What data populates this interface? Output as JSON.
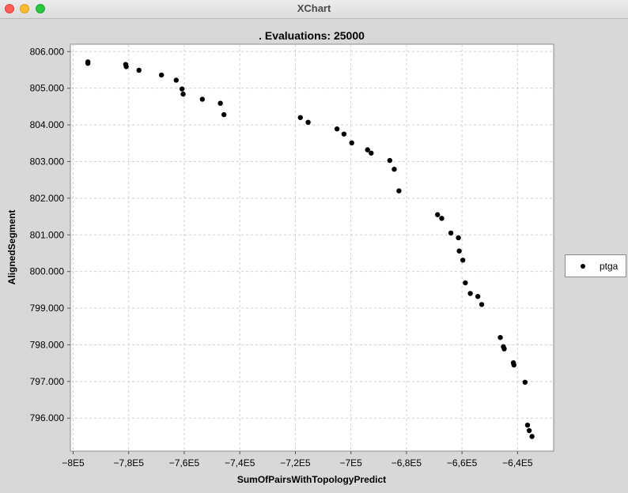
{
  "window": {
    "title": "XChart"
  },
  "colors": {
    "background": "#d8d8d8",
    "plot_background": "#ffffff",
    "grid": "#cfcfcf",
    "marker": "#000000"
  },
  "chart_data": {
    "type": "scatter",
    "title": ". Evaluations: 25000",
    "xlabel": "SumOfPairsWithTopologyPredict",
    "ylabel": "AlignedSegment",
    "xlim": [
      -801000,
      -627000
    ],
    "ylim": [
      795100,
      806200
    ],
    "x_ticks": [
      -800000,
      -780000,
      -760000,
      -740000,
      -720000,
      -700000,
      -680000,
      -660000,
      -640000
    ],
    "x_tick_labels": [
      "−8E5",
      "−7,8E5",
      "−7,6E5",
      "−7,4E5",
      "−7,2E5",
      "−7E5",
      "−6,8E5",
      "−6,6E5",
      "−6,4E5"
    ],
    "y_ticks": [
      796000,
      797000,
      798000,
      799000,
      800000,
      801000,
      802000,
      803000,
      804000,
      805000,
      806000
    ],
    "y_tick_labels": [
      "796.000",
      "797.000",
      "798.000",
      "799.000",
      "800.000",
      "801.000",
      "802.000",
      "803.000",
      "804.000",
      "805.000",
      "806.000"
    ],
    "grid": true,
    "legend_position": "right",
    "series": [
      {
        "name": "ptga",
        "marker": "circle",
        "points": [
          [
            -794700,
            805720
          ],
          [
            -794700,
            805680
          ],
          [
            -781100,
            805650
          ],
          [
            -780900,
            805590
          ],
          [
            -776300,
            805490
          ],
          [
            -768200,
            805360
          ],
          [
            -762900,
            805220
          ],
          [
            -760800,
            804980
          ],
          [
            -760400,
            804840
          ],
          [
            -753500,
            804700
          ],
          [
            -747000,
            804590
          ],
          [
            -745700,
            804280
          ],
          [
            -718200,
            804200
          ],
          [
            -715400,
            804070
          ],
          [
            -705000,
            803890
          ],
          [
            -702500,
            803750
          ],
          [
            -699700,
            803510
          ],
          [
            -694000,
            803320
          ],
          [
            -692700,
            803230
          ],
          [
            -686000,
            803030
          ],
          [
            -684400,
            802790
          ],
          [
            -682700,
            802200
          ],
          [
            -668800,
            801550
          ],
          [
            -667300,
            801450
          ],
          [
            -664000,
            801050
          ],
          [
            -661300,
            800920
          ],
          [
            -661000,
            800560
          ],
          [
            -659700,
            800310
          ],
          [
            -658800,
            799690
          ],
          [
            -657000,
            799400
          ],
          [
            -654300,
            799320
          ],
          [
            -652900,
            799100
          ],
          [
            -646200,
            798200
          ],
          [
            -645100,
            797950
          ],
          [
            -644800,
            797890
          ],
          [
            -641500,
            797510
          ],
          [
            -641300,
            797450
          ],
          [
            -637300,
            796980
          ],
          [
            -636400,
            795810
          ],
          [
            -635800,
            795660
          ],
          [
            -634800,
            795500
          ]
        ]
      }
    ]
  }
}
